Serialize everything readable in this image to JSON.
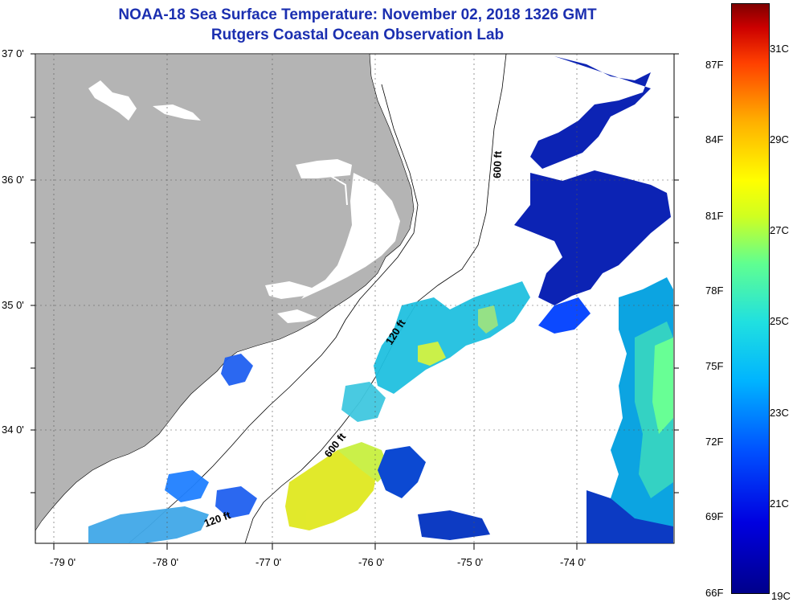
{
  "title_line1": "NOAA-18 Sea Surface Temperature:  November 02, 2018 1326 GMT",
  "title_line2": "Rutgers Coastal Ocean Observation Lab",
  "lat_labels": [
    "37 0'",
    "36 0'",
    "35 0'",
    "34 0'"
  ],
  "lon_labels": [
    "-79 0'",
    "-78 0'",
    "-77 0'",
    "-76 0'",
    "-75 0'",
    "-74 0'"
  ],
  "isobaths": [
    "120 ft",
    "600 ft",
    "120 ft",
    "600 ft"
  ],
  "colorbar_f": [
    "87F",
    "84F",
    "81F",
    "78F",
    "75F",
    "72F",
    "69F",
    "66F"
  ],
  "colorbar_c": [
    "31C",
    "29C",
    "27C",
    "25C",
    "23C",
    "21C",
    "19C"
  ],
  "colors": {
    "title": "#1b2fb0",
    "land": "#b4b4b4"
  }
}
